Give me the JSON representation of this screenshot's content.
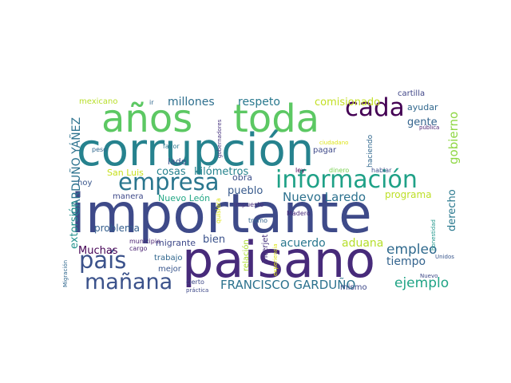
{
  "cloud": {
    "words": [
      {
        "text": "importante",
        "color": "#3e4a89"
      },
      {
        "text": "paisano",
        "color": "#472a7a"
      },
      {
        "text": "corrupción",
        "color": "#26828e"
      },
      {
        "text": "años",
        "color": "#5cc863"
      },
      {
        "text": "toda",
        "color": "#5cc863"
      },
      {
        "text": "información",
        "color": "#1fa187"
      },
      {
        "text": "empresa",
        "color": "#2a768e"
      },
      {
        "text": "cada",
        "color": "#440154"
      },
      {
        "text": "país",
        "color": "#3b528b"
      },
      {
        "text": "mañana",
        "color": "#3b528b"
      },
      {
        "text": "Nuevo Laredo",
        "color": "#2c718e"
      },
      {
        "text": "empleo",
        "color": "#306a8e"
      },
      {
        "text": "ejemplo",
        "color": "#20a486"
      },
      {
        "text": "FRANCISCO GARDUÑO",
        "color": "#2c728e"
      },
      {
        "text": "acuerdo",
        "color": "#2a788e"
      },
      {
        "text": "aduana",
        "color": "#b5de2b"
      },
      {
        "text": "tiempo",
        "color": "#33638d"
      },
      {
        "text": "pueblo",
        "color": "#375a8c"
      },
      {
        "text": "gobierno",
        "color": "#8fd744"
      },
      {
        "text": "respeto",
        "color": "#25848e"
      },
      {
        "text": "programa",
        "color": "#bddf26"
      },
      {
        "text": "derecho",
        "color": "#29788e"
      },
      {
        "text": "comisionado",
        "color": "#c2df23"
      },
      {
        "text": "millones",
        "color": "#2e6f8e"
      },
      {
        "text": "gente",
        "color": "#33638d"
      },
      {
        "text": "ayudar",
        "color": "#31688e"
      },
      {
        "text": "cosas",
        "color": "#26818e"
      },
      {
        "text": "kilómetros",
        "color": "#25838e"
      },
      {
        "text": "GARDUÑO YÁÑEZ",
        "color": "#2c728e"
      },
      {
        "text": "extorsión",
        "color": "#21918c"
      },
      {
        "text": "problema",
        "color": "#355f8d"
      },
      {
        "text": "Muchas",
        "color": "#440154"
      },
      {
        "text": "bien",
        "color": "#3b528b"
      },
      {
        "text": "migrante",
        "color": "#3e4989"
      },
      {
        "text": "mexicano",
        "color": "#b8de29"
      },
      {
        "text": "cartilla",
        "color": "#404688"
      },
      {
        "text": "San Luis",
        "color": "#c8e020"
      },
      {
        "text": "Nuevo León",
        "color": "#22a785"
      },
      {
        "text": "relación",
        "color": "#aadc32"
      },
      {
        "text": "Interjet",
        "color": "#46327e"
      },
      {
        "text": "obra",
        "color": "#3c4f8a"
      },
      {
        "text": "quisiera",
        "color": "#dde318"
      },
      {
        "text": "experiencia",
        "color": "#dde318"
      },
      {
        "text": "haciendo",
        "color": "#31688e"
      },
      {
        "text": "hablar",
        "color": "#3c508b"
      },
      {
        "text": "dinero",
        "color": "#7ad151"
      },
      {
        "text": "ley",
        "color": "#440154"
      },
      {
        "text": "impuesto",
        "color": "#472c7a"
      },
      {
        "text": "Madero",
        "color": "#472a7a"
      },
      {
        "text": "tramo",
        "color": "#33638d"
      },
      {
        "text": "lado",
        "color": "#3b528b"
      },
      {
        "text": "manera",
        "color": "#3e4989"
      },
      {
        "text": "hoy",
        "color": "#39568c"
      },
      {
        "text": "trabajo",
        "color": "#31688e"
      },
      {
        "text": "mejor",
        "color": "#39568c"
      },
      {
        "text": "cierto",
        "color": "#3e4989"
      },
      {
        "text": "práctica",
        "color": "#3e4989"
      },
      {
        "text": "Nuevo",
        "color": "#3e4989"
      },
      {
        "text": "Unidos",
        "color": "#39568c"
      },
      {
        "text": "honestidad",
        "color": "#1f968b"
      },
      {
        "text": "mismo",
        "color": "#3e4989"
      },
      {
        "text": "pagar",
        "color": "#3e4989"
      },
      {
        "text": "ciudadano",
        "color": "#dde318"
      },
      {
        "text": "pública",
        "color": "#481f70"
      },
      {
        "text": "peso",
        "color": "#31688e"
      },
      {
        "text": "favor",
        "color": "#2a788e"
      },
      {
        "text": "ir",
        "color": "#31688e"
      },
      {
        "text": "gobernadores",
        "color": "#46337e"
      },
      {
        "text": "municipio",
        "color": "#481f70"
      },
      {
        "text": "cargo",
        "color": "#481f70"
      },
      {
        "text": "Migración",
        "color": "#31688e"
      }
    ]
  }
}
